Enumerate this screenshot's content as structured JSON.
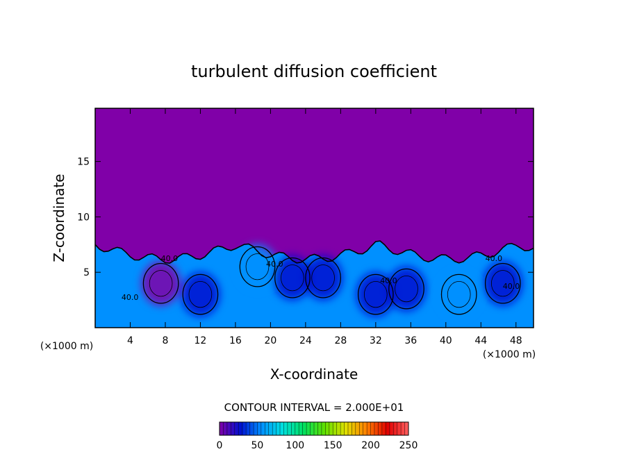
{
  "chart_data": {
    "type": "heatmap",
    "title": "turbulent diffusion coefficient",
    "xlabel": "X-coordinate",
    "ylabel": "Z-coordinate",
    "x_unit": "(×1000 m)",
    "y_unit": "(×1000 m)",
    "xlim": [
      0,
      50
    ],
    "ylim": [
      0,
      19.8
    ],
    "x_ticks": [
      4,
      8,
      12,
      16,
      20,
      24,
      28,
      32,
      36,
      40,
      44,
      48
    ],
    "y_ticks": [
      5,
      10,
      15
    ],
    "contour_interval_label": "CONTOUR INTERVAL = 2.000E+01",
    "contour_labels": [
      "40.0",
      "40.0",
      "40.0",
      "40.0",
      "40.0",
      "40.0"
    ],
    "colorbar": {
      "ticks": [
        0,
        50,
        100,
        150,
        200,
        250
      ],
      "range": [
        0,
        250
      ],
      "colors": [
        "#8000a8",
        "#0010d0",
        "#0090ff",
        "#00e0e0",
        "#00e060",
        "#60e000",
        "#e0e000",
        "#ff8000",
        "#e00000",
        "#ff6060"
      ]
    },
    "background_value": 0,
    "boundary_layer_top": 7.5,
    "eddies": [
      {
        "x": 7.5,
        "z": 4.0,
        "value": 10
      },
      {
        "x": 12.0,
        "z": 3.0,
        "value": 40
      },
      {
        "x": 18.5,
        "z": 5.5,
        "value": 45
      },
      {
        "x": 22.5,
        "z": 4.5,
        "value": 35
      },
      {
        "x": 26.0,
        "z": 4.5,
        "value": 30
      },
      {
        "x": 32.0,
        "z": 3.0,
        "value": 40
      },
      {
        "x": 35.5,
        "z": 3.5,
        "value": 20
      },
      {
        "x": 41.5,
        "z": 3.0,
        "value": 50
      },
      {
        "x": 46.5,
        "z": 4.0,
        "value": 15
      }
    ]
  }
}
